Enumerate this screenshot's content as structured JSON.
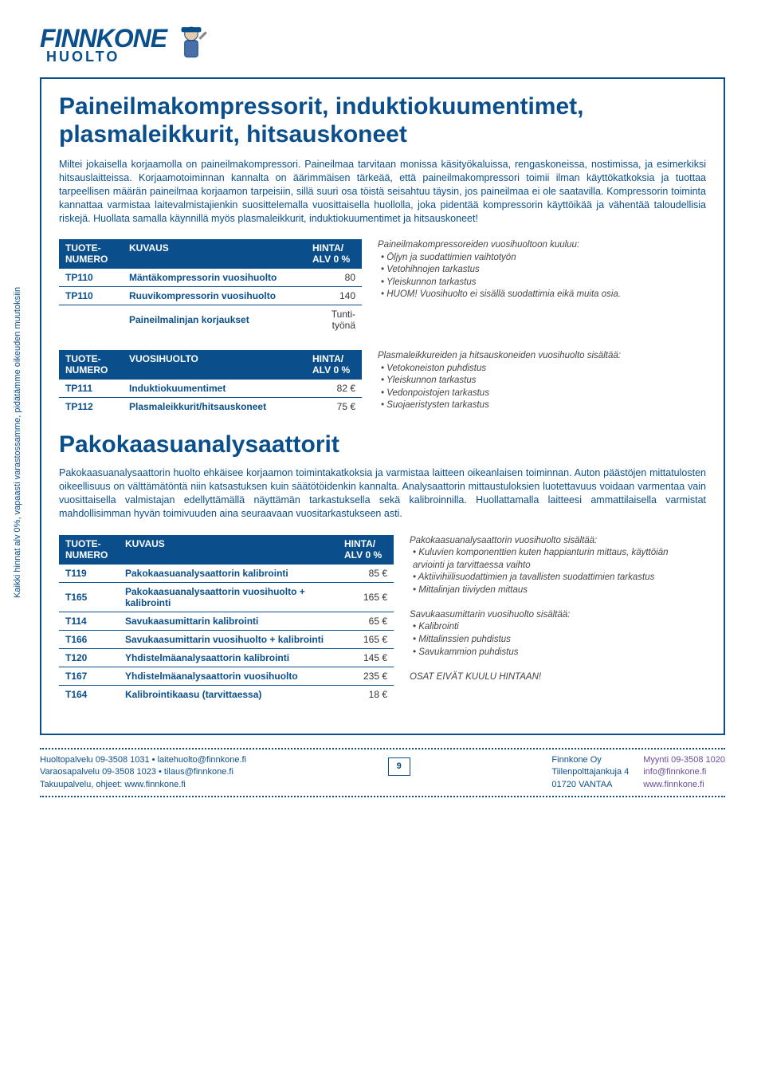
{
  "logo": {
    "brand": "FINNKONE",
    "sub": "HUOLTO"
  },
  "heading1": "Paineilmakompressorit, induktiokuumentimet, plasmaleikkurit, hitsauskoneet",
  "intro": "Miltei jokaisella korjaamolla on paineilmakompressori. Paineilmaa tarvitaan monissa käsityökaluissa, rengaskoneissa, nostimissa, ja esimerkiksi hitsauslaitteissa. Korjaamotoiminnan kannalta on äärimmäisen tärkeää, että paineilmakompressori toimii ilman käyttökatkoksia ja tuottaa tarpeellisen määrän paineilmaa korjaamon tarpeisiin, sillä suuri osa töistä seisahtuu täysin, jos paineilmaa ei ole saatavilla. Kompressorin toiminta kannattaa varmistaa laitevalmistajienkin suosittelemalla vuosittaisella huollolla, joka pidentää kompressorin käyttöikää ja vähentää taloudellisia riskejä. Huollata samalla käynnillä myös plasmaleikkurit, induktiokuumentimet ja hitsauskoneet!",
  "table1": {
    "headers": [
      "TUOTE-\nNUMERO",
      "KUVAUS",
      "HINTA/\nALV 0 %"
    ],
    "rows": [
      [
        "TP110",
        "Mäntäkompressorin vuosihuolto",
        "80"
      ],
      [
        "TP110",
        "Ruuvikompressorin vuosihuolto",
        "140"
      ],
      [
        "",
        "Paineilmalinjan korjaukset",
        "Tunti-\ntyönä"
      ]
    ]
  },
  "side1": {
    "lead": "Paineilmakompressoreiden vuosihuoltoon kuuluu:",
    "items": [
      "Öljyn ja suodattimien vaihtotyön",
      "Vetohihnojen tarkastus",
      "Yleiskunnon tarkastus",
      "HUOM! Vuosihuolto ei sisällä suodattimia eikä muita osia."
    ]
  },
  "table2": {
    "headers": [
      "TUOTE-\nNUMERO",
      "VUOSIHUOLTO",
      "HINTA/\nALV 0 %"
    ],
    "rows": [
      [
        "TP111",
        "Induktiokuumentimet",
        "82 €"
      ],
      [
        "TP112",
        "Plasmaleikkurit/hitsauskoneet",
        "75 €"
      ]
    ]
  },
  "side2": {
    "lead": "Plasmaleikkureiden ja hitsauskoneiden vuosihuolto sisältää:",
    "items": [
      "Vetokoneiston puhdistus",
      "Yleiskunnon tarkastus",
      "Vedonpoistojen tarkastus",
      "Suojaeristysten tarkastus"
    ]
  },
  "heading2": "Pakokaasuanalysaattorit",
  "intro2": "Pakokaasuanalysaattorin huolto ehkäisee korjaamon toimintakatkoksia ja varmistaa laitteen oikeanlaisen toiminnan. Auton päästöjen mittatulosten oikeellisuus on välttämätöntä niin katsastuksen kuin säätötöidenkin kannalta. Analysaattorin mittaustuloksien luotettavuus voidaan varmentaa vain vuosittaisella valmistajan edellyttämällä näyttämän tarkastuksella sekä kalibroinnilla. Huollattamalla laitteesi ammattilaisella varmistat mahdollisimman hyvän toimivuuden aina seuraavaan vuositarkastukseen asti.",
  "table3": {
    "headers": [
      "TUOTE-\nNUMERO",
      "KUVAUS",
      "HINTA/\nALV 0 %"
    ],
    "rows": [
      [
        "T119",
        "Pakokaasuanalysaattorin kalibrointi",
        "85 €"
      ],
      [
        "T165",
        "Pakokaasuanalysaattorin vuosihuolto + kalibrointi",
        "165 €"
      ],
      [
        "T114",
        "Savukaasumittarin kalibrointi",
        "65 €"
      ],
      [
        "T166",
        "Savukaasumittarin vuosihuolto + kalibrointi",
        "165 €"
      ],
      [
        "T120",
        "Yhdistelmäanalysaattorin kalibrointi",
        "145 €"
      ],
      [
        "T167",
        "Yhdistelmäanalysaattorin vuosihuolto",
        "235 €"
      ],
      [
        "T164",
        "Kalibrointikaasu (tarvittaessa)",
        "18 €"
      ]
    ]
  },
  "side3a": {
    "lead": "Pakokaasuanalysaattorin vuosihuolto sisältää:",
    "items": [
      "Kuluvien komponenttien kuten happianturin mittaus, käyttöiän arviointi ja tarvittaessa vaihto",
      "Aktiivihiilisuodattimien ja tavallisten suodattimien tarkastus",
      "Mittalinjan tiiviyden mittaus"
    ]
  },
  "side3b": {
    "lead": "Savukaasumittarin vuosihuolto sisältää:",
    "items": [
      "Kalibrointi",
      "Mittalinssien puhdistus",
      "Savukammion puhdistus"
    ]
  },
  "side3note": "OSAT EIVÄT KUULU HINTAAN!",
  "vertical": "Kaikki hinnat alv 0%, vapaasti varastossamme, pidätämme oikeuden muutoksiin",
  "footer": {
    "left": [
      "Huoltopalvelu 09-3508 1031 • laitehuolto@finnkone.fi",
      "Varaosapalvelu 09-3508 1023 • tilaus@finnkone.fi",
      "Takuupalvelu, ohjeet: www.finnkone.fi"
    ],
    "page": "9",
    "right_company": [
      "Finnkone Oy",
      "Tiilenpolttajankuja 4",
      "01720 VANTAA"
    ],
    "right_contact": [
      "Myynti 09-3508 1020",
      "info@finnkone.fi",
      "www.finnkone.fi"
    ]
  }
}
